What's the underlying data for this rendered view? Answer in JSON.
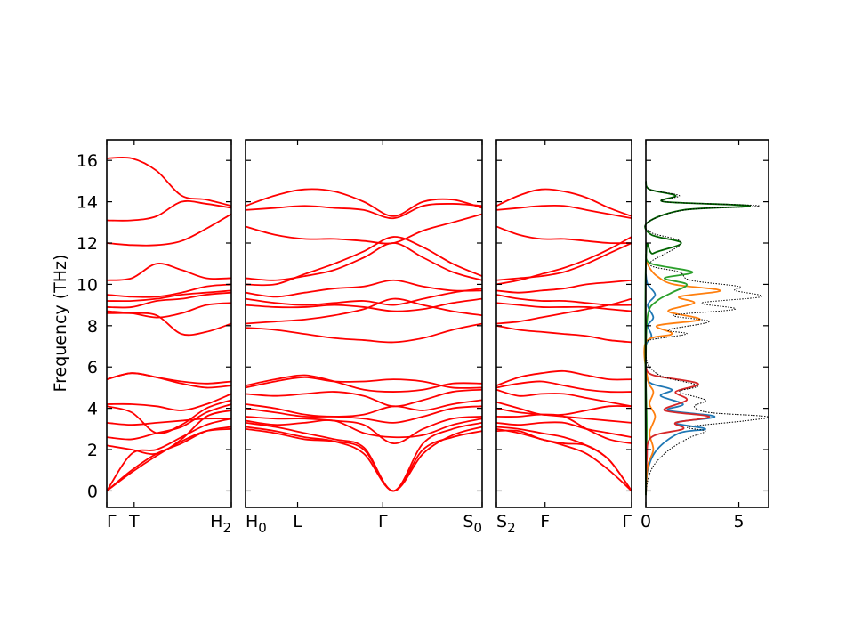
{
  "chart_data": {
    "type": "line",
    "ylabel": "Frequency (THz)",
    "ylim": [
      -0.8,
      17.0
    ],
    "yticks": [
      0,
      2,
      4,
      6,
      8,
      10,
      12,
      14,
      16
    ],
    "colors": {
      "bands": "#ff0000",
      "zero_line": "#0000ff",
      "total_dos": "#000000",
      "pdos": [
        "#1f77b4",
        "#ff7f0e",
        "#2ca02c",
        "#d62728",
        "#006400"
      ]
    },
    "band_panels": [
      {
        "name": "panel-1",
        "xticks": [
          "Γ",
          "T",
          "H2"
        ],
        "xtick_pos": [
          0,
          0.22,
          1
        ],
        "bands": [
          [
            0,
            1.0,
            1.8,
            2.3,
            2.9,
            3.1
          ],
          [
            0,
            0.9,
            1.7,
            2.4,
            2.9,
            3.0
          ],
          [
            0,
            1.8,
            2.0,
            2.6,
            3.2,
            3.5
          ],
          [
            2.2,
            2.0,
            1.8,
            2.5,
            3.6,
            3.9
          ],
          [
            2.6,
            2.5,
            2.8,
            3.1,
            3.8,
            4.2
          ],
          [
            3.3,
            3.2,
            3.3,
            3.4,
            3.5,
            3.5
          ],
          [
            4.1,
            3.8,
            2.8,
            3.2,
            4.0,
            4.4
          ],
          [
            4.2,
            4.2,
            4.1,
            3.9,
            4.2,
            4.7
          ],
          [
            5.4,
            5.7,
            5.5,
            5.2,
            5.0,
            5.1
          ],
          [
            5.4,
            5.7,
            5.5,
            5.3,
            5.2,
            5.3
          ],
          [
            8.6,
            8.6,
            8.5,
            7.6,
            7.7,
            8.1
          ],
          [
            8.7,
            8.6,
            8.4,
            8.6,
            9.0,
            9.1
          ],
          [
            8.9,
            8.9,
            9.2,
            9.3,
            9.5,
            9.6
          ],
          [
            9.2,
            9.2,
            9.3,
            9.5,
            9.6,
            9.7
          ],
          [
            9.5,
            9.4,
            9.4,
            9.6,
            9.9,
            10.0
          ],
          [
            10.2,
            10.3,
            11.0,
            10.7,
            10.3,
            10.3
          ],
          [
            12.0,
            11.9,
            11.9,
            12.1,
            12.7,
            13.4
          ],
          [
            13.1,
            13.1,
            13.3,
            14.0,
            13.9,
            13.7
          ],
          [
            16.1,
            16.1,
            15.5,
            14.3,
            14.1,
            13.8
          ]
        ]
      },
      {
        "name": "panel-2",
        "xticks": [
          "H0",
          "L",
          "Γ",
          "S0"
        ],
        "xtick_pos": [
          0,
          0.22,
          0.58,
          1
        ],
        "bands": [
          [
            3.0,
            2.8,
            2.5,
            2.4,
            2.0,
            0,
            2.0,
            2.6,
            2.9
          ],
          [
            3.1,
            2.9,
            2.6,
            2.4,
            1.8,
            0,
            1.8,
            2.7,
            3.1
          ],
          [
            3.3,
            3.1,
            2.8,
            2.5,
            2.1,
            0,
            2.3,
            3.0,
            3.3
          ],
          [
            3.4,
            3.2,
            3.3,
            3.4,
            2.8,
            2.6,
            2.7,
            3.2,
            3.5
          ],
          [
            3.6,
            3.5,
            3.5,
            3.4,
            3.2,
            2.3,
            3.0,
            3.5,
            3.6
          ],
          [
            4.0,
            3.8,
            3.6,
            3.6,
            3.5,
            3.3,
            3.6,
            4.0,
            4.1
          ],
          [
            4.2,
            4.0,
            3.7,
            3.6,
            3.7,
            4.1,
            3.9,
            4.2,
            4.4
          ],
          [
            4.7,
            4.6,
            4.7,
            4.8,
            4.6,
            4.1,
            4.4,
            4.8,
            4.9
          ],
          [
            5.0,
            5.3,
            5.5,
            5.3,
            5.3,
            5.4,
            5.3,
            5.0,
            5.0
          ],
          [
            5.1,
            5.4,
            5.6,
            5.3,
            4.9,
            4.8,
            4.9,
            5.2,
            5.2
          ],
          [
            7.9,
            7.8,
            7.6,
            7.4,
            7.3,
            7.2,
            7.4,
            7.8,
            8.1
          ],
          [
            8.1,
            8.2,
            8.3,
            8.5,
            8.8,
            9.3,
            9.0,
            8.7,
            8.5
          ],
          [
            9.0,
            8.9,
            8.9,
            9.0,
            8.9,
            8.7,
            8.8,
            9.1,
            9.3
          ],
          [
            9.3,
            9.1,
            9.0,
            9.1,
            9.2,
            9.0,
            9.3,
            9.6,
            9.8
          ],
          [
            9.6,
            9.4,
            9.6,
            9.8,
            9.9,
            10.2,
            9.9,
            9.7,
            9.7
          ],
          [
            10.3,
            10.2,
            10.4,
            10.7,
            11.3,
            12.0,
            11.3,
            10.6,
            10.2
          ],
          [
            10.0,
            10.0,
            10.5,
            11.0,
            11.6,
            12.3,
            11.8,
            11.0,
            10.4
          ],
          [
            12.8,
            12.4,
            12.2,
            12.2,
            12.1,
            12.0,
            12.6,
            13.0,
            13.4
          ],
          [
            13.6,
            13.7,
            13.8,
            13.7,
            13.6,
            13.2,
            13.8,
            13.9,
            13.8
          ],
          [
            13.8,
            14.3,
            14.6,
            14.5,
            14.0,
            13.3,
            14.0,
            14.1,
            13.7
          ]
        ]
      },
      {
        "name": "panel-3",
        "xticks": [
          "S2",
          "F",
          "Γ"
        ],
        "xtick_pos": [
          0,
          0.36,
          1
        ],
        "bands": [
          [
            2.9,
            2.9,
            2.5,
            2.3,
            2.2,
            1.5,
            0
          ],
          [
            3.0,
            2.8,
            2.5,
            2.2,
            1.8,
            1.0,
            0
          ],
          [
            3.1,
            3.0,
            2.8,
            2.6,
            2.2,
            1.5,
            0
          ],
          [
            3.3,
            3.2,
            3.3,
            3.3,
            3.0,
            2.8,
            2.6
          ],
          [
            3.6,
            3.6,
            3.7,
            3.6,
            3.0,
            2.5,
            2.3
          ],
          [
            4.0,
            3.8,
            3.7,
            3.6,
            3.5,
            3.4,
            3.3
          ],
          [
            4.3,
            4.0,
            3.7,
            3.7,
            3.9,
            4.1,
            4.1
          ],
          [
            4.9,
            4.6,
            4.7,
            4.7,
            4.5,
            4.3,
            4.1
          ],
          [
            5.1,
            5.5,
            5.7,
            5.8,
            5.6,
            5.4,
            5.4
          ],
          [
            5.0,
            5.2,
            5.3,
            5.1,
            4.9,
            4.8,
            4.8
          ],
          [
            8.0,
            7.8,
            7.7,
            7.6,
            7.5,
            7.3,
            7.2
          ],
          [
            8.1,
            8.2,
            8.4,
            8.6,
            8.8,
            9.0,
            9.3
          ],
          [
            9.1,
            9.0,
            8.9,
            8.9,
            8.9,
            8.8,
            8.7
          ],
          [
            9.5,
            9.3,
            9.2,
            9.2,
            9.1,
            9.0,
            9.0
          ],
          [
            9.7,
            9.6,
            9.7,
            9.8,
            10.0,
            10.1,
            10.2
          ],
          [
            10.2,
            10.3,
            10.4,
            10.6,
            11.0,
            11.5,
            12.0
          ],
          [
            10.0,
            10.2,
            10.5,
            10.8,
            11.2,
            11.7,
            12.3
          ],
          [
            12.8,
            12.4,
            12.2,
            12.2,
            12.1,
            12.0,
            12.0
          ],
          [
            13.6,
            13.7,
            13.8,
            13.8,
            13.6,
            13.4,
            13.2
          ],
          [
            13.8,
            14.3,
            14.6,
            14.5,
            14.2,
            13.7,
            13.3
          ]
        ]
      }
    ],
    "dos_panel": {
      "xlim": [
        0,
        6.6
      ],
      "xticks": [
        0,
        5
      ],
      "total": [
        [
          0,
          -0.2
        ],
        [
          0.1,
          0.5
        ],
        [
          0.4,
          1.2
        ],
        [
          1.0,
          1.8
        ],
        [
          1.6,
          2.2
        ],
        [
          2.4,
          2.6
        ],
        [
          3.2,
          2.9
        ],
        [
          2.3,
          3.1
        ],
        [
          5.4,
          3.4
        ],
        [
          6.5,
          3.6
        ],
        [
          3.4,
          3.8
        ],
        [
          2.6,
          4.1
        ],
        [
          3.2,
          4.4
        ],
        [
          1.8,
          4.8
        ],
        [
          2.8,
          5.1
        ],
        [
          1.0,
          5.5
        ],
        [
          0.3,
          5.9
        ],
        [
          0.05,
          6.3
        ],
        [
          0.0,
          7.0
        ],
        [
          0.2,
          7.3
        ],
        [
          2.2,
          7.6
        ],
        [
          1.2,
          7.8
        ],
        [
          3.4,
          8.2
        ],
        [
          1.5,
          8.5
        ],
        [
          4.8,
          8.8
        ],
        [
          3.0,
          9.1
        ],
        [
          6.2,
          9.4
        ],
        [
          4.8,
          9.7
        ],
        [
          5.0,
          9.9
        ],
        [
          2.4,
          10.2
        ],
        [
          1.8,
          10.6
        ],
        [
          0.2,
          11.0
        ],
        [
          1.9,
          12.0
        ],
        [
          0.3,
          12.5
        ],
        [
          0.1,
          13.0
        ],
        [
          2.1,
          13.6
        ],
        [
          6.1,
          13.8
        ],
        [
          1.0,
          14.0
        ],
        [
          1.8,
          14.3
        ],
        [
          0.2,
          14.6
        ],
        [
          0,
          15.0
        ]
      ],
      "pdos": [
        [
          [
            0,
            -0.2
          ],
          [
            0.1,
            1.0
          ],
          [
            0.6,
            2.0
          ],
          [
            1.8,
            2.8
          ],
          [
            3.2,
            3.0
          ],
          [
            1.6,
            3.3
          ],
          [
            3.7,
            3.6
          ],
          [
            1.2,
            3.9
          ],
          [
            2.0,
            4.2
          ],
          [
            0.8,
            4.6
          ],
          [
            1.4,
            4.9
          ],
          [
            0.3,
            5.2
          ],
          [
            0.05,
            5.6
          ],
          [
            0,
            7.0
          ],
          [
            0.3,
            7.5
          ],
          [
            0.1,
            8.0
          ],
          [
            0.4,
            8.4
          ],
          [
            0.1,
            9.0
          ],
          [
            0.5,
            9.5
          ],
          [
            0.1,
            10.0
          ],
          [
            0,
            10.5
          ]
        ],
        [
          [
            0,
            -0.2
          ],
          [
            0.1,
            1.2
          ],
          [
            0.4,
            2.0
          ],
          [
            0.2,
            2.8
          ],
          [
            0.5,
            3.6
          ],
          [
            0.2,
            4.2
          ],
          [
            0.4,
            4.8
          ],
          [
            0.1,
            5.4
          ],
          [
            0,
            7.2
          ],
          [
            1.4,
            7.6
          ],
          [
            0.6,
            8.0
          ],
          [
            2.9,
            8.3
          ],
          [
            1.2,
            8.7
          ],
          [
            2.6,
            9.1
          ],
          [
            1.8,
            9.4
          ],
          [
            4.0,
            9.7
          ],
          [
            1.5,
            10.0
          ],
          [
            0.6,
            10.4
          ],
          [
            0.2,
            10.8
          ],
          [
            0,
            11.2
          ]
        ],
        [
          [
            0,
            -0.2
          ],
          [
            0.05,
            3.0
          ],
          [
            0,
            6.0
          ],
          [
            0.1,
            8.5
          ],
          [
            0.6,
            9.2
          ],
          [
            1.4,
            9.6
          ],
          [
            2.2,
            10.0
          ],
          [
            1.0,
            10.3
          ],
          [
            2.5,
            10.6
          ],
          [
            0.3,
            11.0
          ],
          [
            0,
            11.5
          ]
        ],
        [
          [
            0,
            -0.2
          ],
          [
            0.05,
            1.5
          ],
          [
            0.3,
            2.6
          ],
          [
            2.0,
            3.0
          ],
          [
            1.6,
            3.3
          ],
          [
            3.4,
            3.6
          ],
          [
            1.0,
            3.9
          ],
          [
            2.2,
            4.4
          ],
          [
            1.6,
            4.8
          ],
          [
            2.8,
            5.2
          ],
          [
            0.4,
            5.6
          ],
          [
            0,
            6.0
          ]
        ],
        [
          [
            0,
            -0.2
          ],
          [
            0,
            11.0
          ],
          [
            0.4,
            11.5
          ],
          [
            1.9,
            12.0
          ],
          [
            0.3,
            12.4
          ],
          [
            0.1,
            13.0
          ],
          [
            2.0,
            13.6
          ],
          [
            5.6,
            13.8
          ],
          [
            1.0,
            14.0
          ],
          [
            1.6,
            14.3
          ],
          [
            0.2,
            14.6
          ],
          [
            0,
            15.0
          ]
        ]
      ]
    }
  }
}
